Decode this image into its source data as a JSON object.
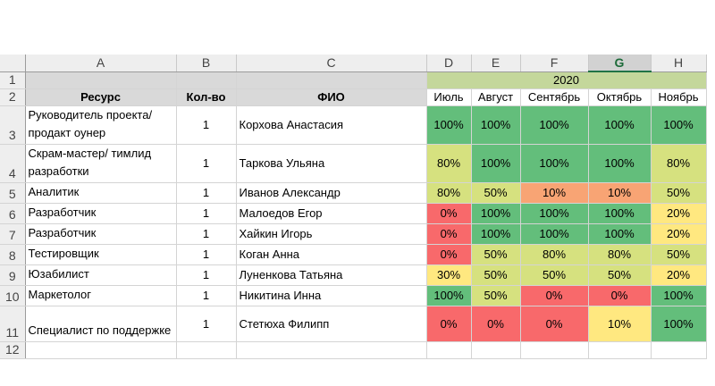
{
  "columns": [
    "A",
    "B",
    "C",
    "D",
    "E",
    "F",
    "G",
    "H"
  ],
  "selected_column": "G",
  "row_numbers": [
    "1",
    "2",
    "3",
    "4",
    "5",
    "6",
    "7",
    "8",
    "9",
    "10",
    "11",
    "12"
  ],
  "year": "2020",
  "headers": {
    "resource": "Ресурс",
    "qty": "Кол-во",
    "fio": "ФИО"
  },
  "months": [
    "Июль",
    "Август",
    "Сентябрь",
    "Октябрь",
    "Ноябрь"
  ],
  "colors": {
    "green": "#63be7b",
    "light_green": "#b5d98c",
    "yellow_green": "#d6e17f",
    "yellow": "#ffe880",
    "orange": "#f8a474",
    "red": "#f8696b",
    "year_header": "#c4d79b",
    "header_grey": "#d9d9d9"
  },
  "rows": [
    {
      "resource": "Руководитель проекта/ продакт оунер",
      "qty": "1",
      "fio": "Корхова Анастасия",
      "values": [
        "100%",
        "100%",
        "100%",
        "100%",
        "100%"
      ],
      "fills": [
        "green",
        "green",
        "green",
        "green",
        "green"
      ]
    },
    {
      "resource": "Скрам-мастер/ тимлид разработки",
      "qty": "1",
      "fio": "Таркова Ульяна",
      "values": [
        "80%",
        "100%",
        "100%",
        "100%",
        "80%"
      ],
      "fills": [
        "yellow_green",
        "green",
        "green",
        "green",
        "yellow_green"
      ]
    },
    {
      "resource": "Аналитик",
      "qty": "1",
      "fio": "Иванов Александр",
      "values": [
        "80%",
        "50%",
        "10%",
        "10%",
        "50%"
      ],
      "fills": [
        "yellow_green",
        "yellow_green",
        "orange",
        "orange",
        "yellow_green"
      ]
    },
    {
      "resource": "Разработчик",
      "qty": "1",
      "fio": "Малоедов Егор",
      "values": [
        "0%",
        "100%",
        "100%",
        "100%",
        "20%"
      ],
      "fills": [
        "red",
        "green",
        "green",
        "green",
        "yellow"
      ]
    },
    {
      "resource": "Разработчик",
      "qty": "1",
      "fio": "Хайкин Игорь",
      "values": [
        "0%",
        "100%",
        "100%",
        "100%",
        "20%"
      ],
      "fills": [
        "red",
        "green",
        "green",
        "green",
        "yellow"
      ]
    },
    {
      "resource": "Тестировщик",
      "qty": "1",
      "fio": "Коган Анна",
      "values": [
        "0%",
        "50%",
        "80%",
        "80%",
        "50%"
      ],
      "fills": [
        "red",
        "yellow_green",
        "yellow_green",
        "yellow_green",
        "yellow_green"
      ]
    },
    {
      "resource": "Юзабилист",
      "qty": "1",
      "fio": "Луненкова Татьяна",
      "values": [
        "30%",
        "50%",
        "50%",
        "50%",
        "20%"
      ],
      "fills": [
        "yellow",
        "yellow_green",
        "yellow_green",
        "yellow_green",
        "yellow"
      ]
    },
    {
      "resource": "Маркетолог",
      "qty": "1",
      "fio": "Никитина Инна",
      "values": [
        "100%",
        "50%",
        "0%",
        "0%",
        "100%"
      ],
      "fills": [
        "green",
        "yellow_green",
        "red",
        "red",
        "green"
      ]
    },
    {
      "resource": "Специалист по поддержке",
      "qty": "1",
      "fio": "Стетюха Филипп",
      "values": [
        "0%",
        "0%",
        "0%",
        "10%",
        "100%"
      ],
      "fills": [
        "red",
        "red",
        "red",
        "yellow",
        "green"
      ]
    }
  ]
}
